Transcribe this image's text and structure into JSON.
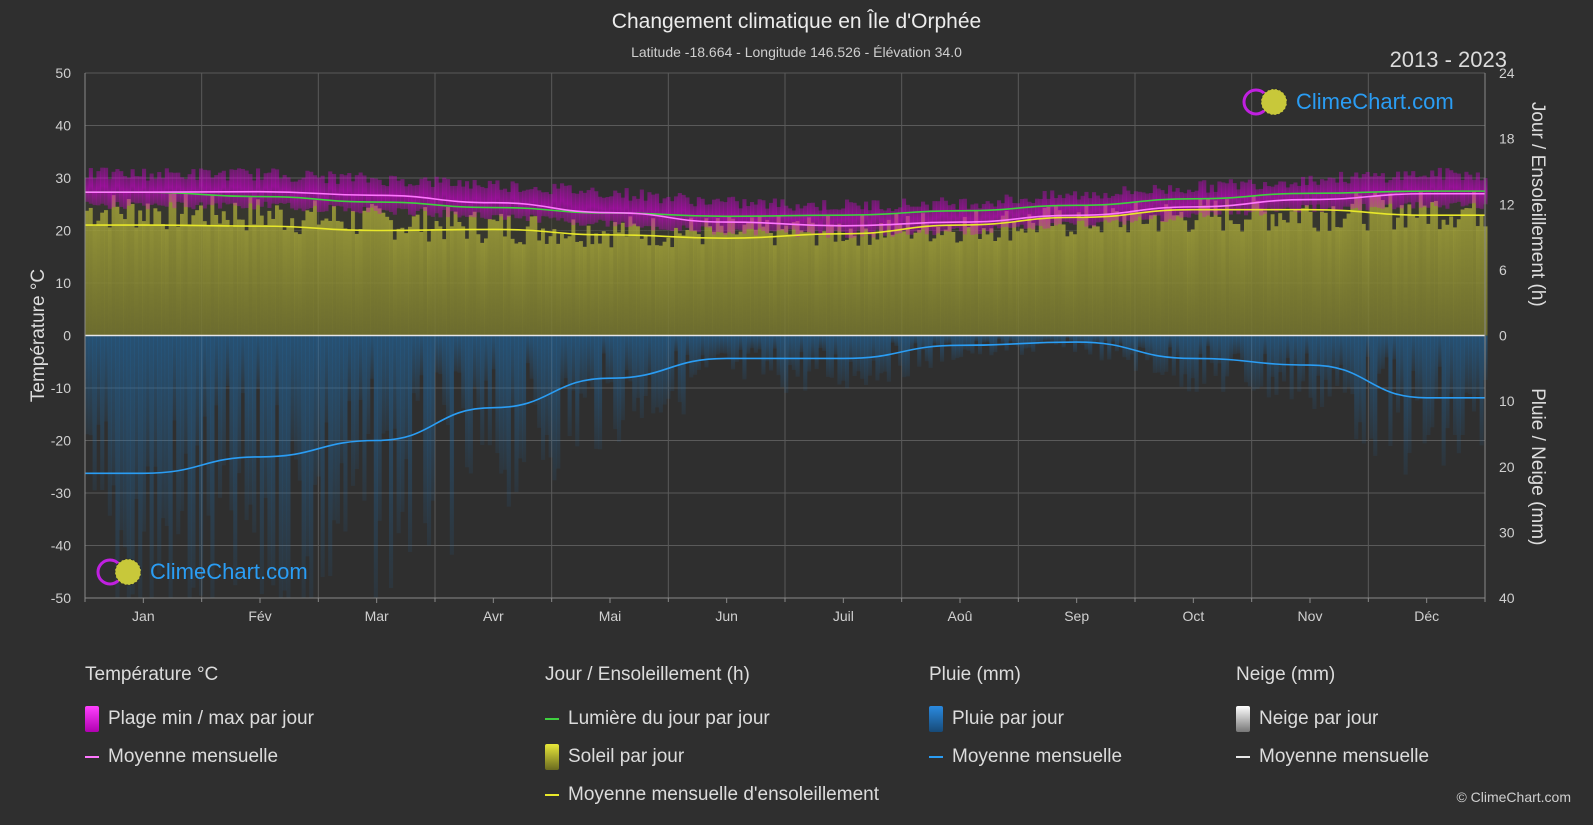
{
  "header": {
    "title": "Changement climatique en Île d'Orphée",
    "subtitle": "Latitude -18.664 - Longitude 146.526 - Élévation 34.0",
    "years": "2013 - 2023"
  },
  "logo": {
    "text": "ClimeChart.com"
  },
  "copyright": "© ClimeChart.com",
  "colors": {
    "background": "#2f2f2f",
    "temp_range": "#d600d6",
    "temp_mean": "#ff77ff",
    "daylight": "#3fd03f",
    "sunshine_fill": "#a8a832",
    "sunshine_mean": "#e8e82a",
    "rain_fill": "#1f6fb0",
    "rain_mean": "#2a9df4",
    "snow": "#d8d8d8"
  },
  "chart_data": {
    "type": "line",
    "months": [
      "Jan",
      "Fév",
      "Mar",
      "Avr",
      "Mai",
      "Jun",
      "Juil",
      "Aoû",
      "Sep",
      "Oct",
      "Nov",
      "Déc"
    ],
    "axes": {
      "left": {
        "label": "Température °C",
        "min": -50,
        "max": 50,
        "ticks": [
          50,
          40,
          30,
          20,
          10,
          0,
          -10,
          -20,
          -30,
          -40,
          -50
        ]
      },
      "right_top": {
        "label": "Jour / Ensoleillement (h)",
        "min": 0,
        "max": 24,
        "ticks": [
          24,
          18,
          12,
          6,
          0
        ]
      },
      "right_bottom": {
        "label": "Pluie / Neige (mm)",
        "min": 0,
        "max": 40,
        "ticks": [
          0,
          10,
          20,
          30,
          40
        ]
      }
    },
    "grid": true,
    "series": [
      {
        "name": "Plage min / max par jour",
        "kind": "band",
        "min": [
          25.5,
          25.5,
          24.5,
          23.5,
          22,
          20.5,
          20,
          20.5,
          22,
          23.5,
          25,
          25.5
        ],
        "max": [
          29.5,
          29.5,
          28.5,
          27.5,
          26,
          24,
          23.5,
          24,
          25.5,
          27,
          28.5,
          29.5
        ]
      },
      {
        "name": "Moyenne mensuelle",
        "group": "temperature",
        "values": [
          27.3,
          27.4,
          26.7,
          25.3,
          23.4,
          21.6,
          20.9,
          21.6,
          22.9,
          24.5,
          25.9,
          27.0
        ]
      },
      {
        "name": "Lumière du jour par jour",
        "values_h": [
          13.1,
          12.7,
          12.2,
          11.7,
          11.2,
          10.9,
          11.0,
          11.4,
          11.9,
          12.5,
          13.0,
          13.2
        ]
      },
      {
        "name": "Soleil par jour",
        "values_h": [
          12.3,
          11.9,
          11.2,
          10.7,
          10.3,
          10.2,
          10.4,
          10.8,
          11.3,
          11.8,
          12.2,
          12.4
        ]
      },
      {
        "name": "Moyenne mensuelle d'ensoleillement",
        "values_h": [
          10.1,
          10.0,
          9.6,
          9.7,
          9.2,
          8.9,
          9.3,
          10.1,
          10.8,
          11.5,
          11.5,
          11.0
        ]
      },
      {
        "name": "Pluie par jour",
        "values_mm": [
          21.0,
          18.5,
          16.0,
          11.0,
          6.5,
          3.5,
          3.5,
          1.5,
          1.0,
          3.5,
          4.5,
          9.5
        ]
      },
      {
        "name": "Moyenne mensuelle",
        "group": "rain",
        "values_mm": [
          21.0,
          18.5,
          16.0,
          11.0,
          6.5,
          3.5,
          3.5,
          1.5,
          1.0,
          3.5,
          4.5,
          9.5
        ]
      }
    ]
  },
  "legend": {
    "temperature": {
      "title": "Température °C",
      "items": [
        "Plage min / max par jour",
        "Moyenne mensuelle"
      ]
    },
    "sun": {
      "title": "Jour / Ensoleillement (h)",
      "items": [
        "Lumière du jour par jour",
        "Soleil par jour",
        "Moyenne mensuelle d'ensoleillement"
      ]
    },
    "rain": {
      "title": "Pluie (mm)",
      "items": [
        "Pluie par jour",
        "Moyenne mensuelle"
      ]
    },
    "snow": {
      "title": "Neige (mm)",
      "items": [
        "Neige par jour",
        "Moyenne mensuelle"
      ]
    }
  }
}
